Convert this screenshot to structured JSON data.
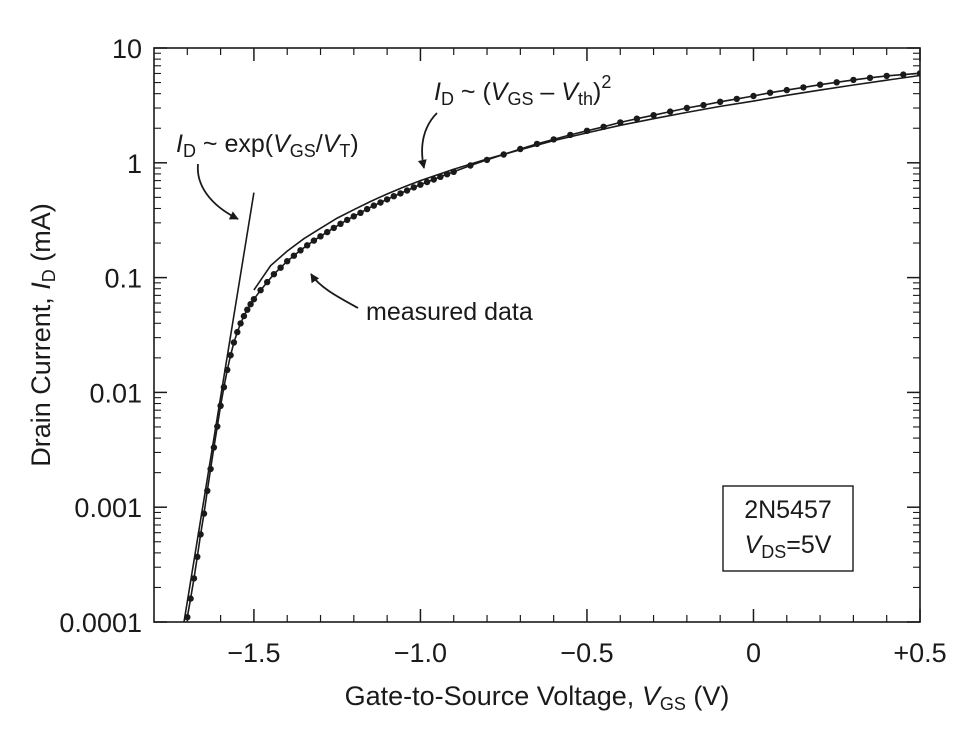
{
  "chart_data": {
    "type": "scatter",
    "title": "",
    "xlabel": {
      "main": "Gate-to-Source Voltage, ",
      "var": "V",
      "sub": "GS",
      "unit": " (V)"
    },
    "ylabel": {
      "main": "Drain Current, ",
      "var": "I",
      "sub": "D",
      "unit": " (mA)"
    },
    "xlim": [
      -1.8,
      0.5
    ],
    "ylim": [
      0.0001,
      10
    ],
    "yscale": "log",
    "x_ticks": [
      -1.5,
      -1.0,
      -0.5,
      0,
      0.5
    ],
    "x_tick_labels": [
      "−1.5",
      "−1.0",
      "−0.5",
      "0",
      "+0.5"
    ],
    "y_ticks": [
      0.0001,
      0.001,
      0.01,
      0.1,
      1,
      10
    ],
    "y_tick_labels": [
      "0.0001",
      "0.001",
      "0.01",
      "0.1",
      "1",
      "10"
    ],
    "series": [
      {
        "name": "measured data",
        "kind": "markers+line",
        "x": [
          -1.7,
          -1.69,
          -1.68,
          -1.67,
          -1.66,
          -1.65,
          -1.64,
          -1.63,
          -1.62,
          -1.61,
          -1.6,
          -1.59,
          -1.58,
          -1.57,
          -1.56,
          -1.55,
          -1.54,
          -1.53,
          -1.52,
          -1.51,
          -1.5,
          -1.48,
          -1.46,
          -1.44,
          -1.42,
          -1.4,
          -1.38,
          -1.36,
          -1.34,
          -1.32,
          -1.3,
          -1.28,
          -1.26,
          -1.24,
          -1.22,
          -1.2,
          -1.18,
          -1.16,
          -1.14,
          -1.12,
          -1.1,
          -1.08,
          -1.06,
          -1.04,
          -1.02,
          -1.0,
          -0.98,
          -0.96,
          -0.94,
          -0.92,
          -0.9,
          -0.85,
          -0.8,
          -0.75,
          -0.7,
          -0.65,
          -0.6,
          -0.55,
          -0.5,
          -0.45,
          -0.4,
          -0.35,
          -0.3,
          -0.25,
          -0.2,
          -0.15,
          -0.1,
          -0.05,
          0.0,
          0.05,
          0.1,
          0.15,
          0.2,
          0.25,
          0.3,
          0.35,
          0.4,
          0.45,
          0.5
        ],
        "y": [
          0.00011,
          0.00016,
          0.00024,
          0.00037,
          0.00058,
          0.00088,
          0.00139,
          0.00215,
          0.00331,
          0.00505,
          0.00764,
          0.0111,
          0.0157,
          0.0211,
          0.0272,
          0.0335,
          0.0399,
          0.0462,
          0.0525,
          0.0587,
          0.0649,
          0.0776,
          0.0914,
          0.107,
          0.122,
          0.139,
          0.155,
          0.173,
          0.191,
          0.21,
          0.229,
          0.249,
          0.271,
          0.294,
          0.318,
          0.342,
          0.367,
          0.395,
          0.424,
          0.451,
          0.48,
          0.512,
          0.541,
          0.574,
          0.61,
          0.645,
          0.68,
          0.715,
          0.755,
          0.796,
          0.835,
          0.948,
          1.06,
          1.18,
          1.32,
          1.46,
          1.6,
          1.75,
          1.9,
          2.06,
          2.25,
          2.42,
          2.6,
          2.79,
          3.0,
          3.18,
          3.4,
          3.6,
          3.82,
          4.08,
          4.3,
          4.54,
          4.79,
          5.03,
          5.27,
          5.5,
          5.72,
          5.86,
          6.02
        ]
      },
      {
        "name": "I_D ~ exp(V_GS/V_T) fit",
        "kind": "line",
        "x": [
          -1.71,
          -1.5
        ],
        "y": [
          0.0001,
          0.55
        ]
      },
      {
        "name": "I_D ~ (V_GS - V_th)^2 fit",
        "kind": "line",
        "x": [
          -1.5,
          -1.45,
          -1.4,
          -1.35,
          -1.3,
          -1.25,
          -1.2,
          -1.15,
          -1.1,
          -1.05,
          -1.0,
          -0.9,
          -0.8,
          -0.7,
          -0.6,
          -0.5,
          -0.4,
          -0.3,
          -0.2,
          -0.1,
          0.0,
          0.1,
          0.2,
          0.3,
          0.4,
          0.5
        ],
        "y": [
          0.078,
          0.127,
          0.17,
          0.218,
          0.269,
          0.33,
          0.39,
          0.46,
          0.535,
          0.615,
          0.7,
          0.88,
          1.08,
          1.3,
          1.56,
          1.82,
          2.12,
          2.42,
          2.75,
          3.1,
          3.45,
          3.87,
          4.3,
          4.76,
          5.24,
          5.76
        ]
      }
    ],
    "annotations": {
      "exp": {
        "var1": "I",
        "sub1": "D",
        "mid": " ~ exp(",
        "var2": "V",
        "sub2": "GS",
        "slash": "/",
        "var3": "V",
        "sub3": "T",
        "close": ")"
      },
      "square": {
        "var1": "I",
        "sub1": "D",
        "mid": " ~ (",
        "var2": "V",
        "sub2": "GS",
        "minus": " – ",
        "var3": "V",
        "sub3": "th",
        "close": ")",
        "sup": "2"
      },
      "measured": "measured data"
    },
    "legend_box": {
      "line1": "2N5457",
      "line2_var": "V",
      "line2_sub": "DS",
      "line2_rest": "=5V",
      "position": "bottom-right"
    }
  }
}
